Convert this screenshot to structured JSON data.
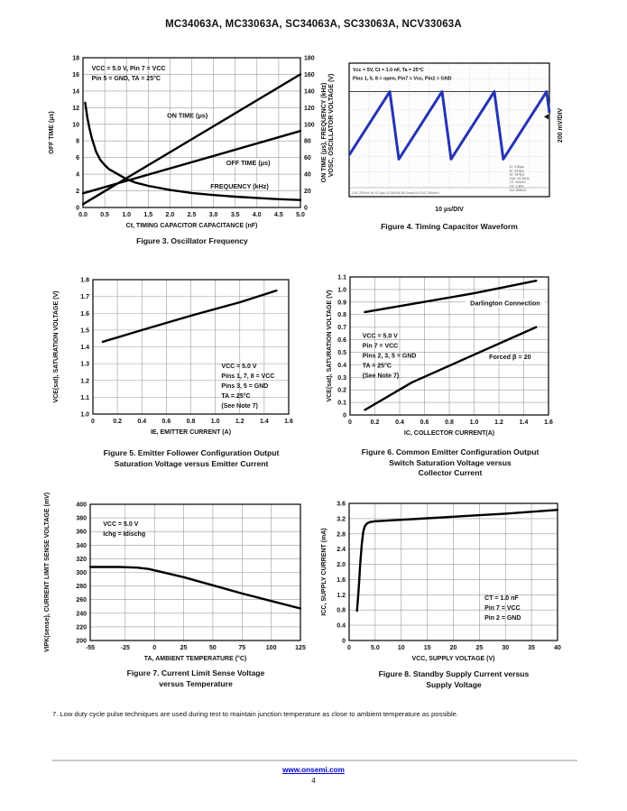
{
  "page": {
    "title": "MC34063A, MC33063A, SC34063A, SC33063A, NCV33063A",
    "note7": "7.  Low duty cycle pulse techniques are used during test to maintain junction temperature as close to ambient temperature as possible.",
    "footer_link": "www.onsemi.com",
    "page_number": "4"
  },
  "chart_data": [
    {
      "type": "line",
      "caption": "Figure 3. Oscillator Frequency",
      "xlabel": "Ct, TIMING CAPACITOR CAPACITANCE (nF)",
      "ylabel": "OFF TIME (μs)",
      "y2label": "ON TIME (μs), FREQUENCY (kHz)",
      "x": {
        "min": 0,
        "max": 5,
        "ticks": [
          0,
          0.5,
          1,
          1.5,
          2,
          2.5,
          3,
          3.5,
          4,
          4.5,
          5
        ],
        "labels": [
          "0.0",
          "0.5",
          "1.0",
          "1.5",
          "2.0",
          "2.5",
          "3.0",
          "3.5",
          "4.0",
          "4.5",
          "5.0"
        ]
      },
      "y": {
        "min": 0,
        "max": 18,
        "ticks": [
          0,
          2,
          4,
          6,
          8,
          10,
          12,
          14,
          16,
          18
        ],
        "labels": [
          "0",
          "2",
          "4",
          "6",
          "8",
          "10",
          "12",
          "14",
          "16",
          "18"
        ]
      },
      "y2": {
        "min": 0,
        "max": 180,
        "ticks": [
          0,
          20,
          40,
          60,
          80,
          100,
          120,
          140,
          160,
          180
        ],
        "labels": [
          "0",
          "20",
          "40",
          "60",
          "80",
          "100",
          "120",
          "140",
          "160",
          "180"
        ]
      },
      "series": [
        {
          "name": "ON TIME (μs)",
          "axis": "y2",
          "points": [
            [
              0,
              4
            ],
            [
              5,
              160
            ]
          ]
        },
        {
          "name": "OFF TIME (μs)",
          "axis": "y",
          "points": [
            [
              0,
              1.7
            ],
            [
              5,
              9.2
            ]
          ]
        },
        {
          "name": "FREQUENCY (kHz)",
          "axis": "y2",
          "points": [
            [
              0.05,
              126
            ],
            [
              0.1,
              108
            ],
            [
              0.15,
              95
            ],
            [
              0.2,
              84
            ],
            [
              0.3,
              67
            ],
            [
              0.4,
              57
            ],
            [
              0.5,
              51
            ],
            [
              0.6,
              46
            ],
            [
              0.8,
              40
            ],
            [
              1.0,
              34
            ],
            [
              1.2,
              30
            ],
            [
              1.5,
              26
            ],
            [
              2.0,
              21
            ],
            [
              2.5,
              17.5
            ],
            [
              3.0,
              15
            ],
            [
              3.5,
              13
            ],
            [
              4.0,
              11.5
            ],
            [
              4.5,
              10
            ],
            [
              5.0,
              9
            ]
          ]
        }
      ],
      "labels": [
        {
          "x": 2.4,
          "y": 10.8,
          "text": "ON TIME (μs)"
        },
        {
          "x": 3.8,
          "y": 5.1,
          "text": "OFF TIME (μs)"
        },
        {
          "x": 3.6,
          "y": 2.3,
          "text": "FREQUENCY (kHz)"
        }
      ],
      "notes": [
        {
          "x": 0.2,
          "y": 16.5,
          "lines": [
            "VCC = 5.0 V, Pin 7 = VCC",
            "Pin 5 = GND, TA = 25°C"
          ]
        }
      ]
    },
    {
      "type": "scope",
      "caption": "Figure 4. Timing Capacitor Waveform",
      "ylabel": "VOSC, OSCILLATOR VOLTAGE (V)",
      "right_label": "200 mV/DIV",
      "xlabel": "10 μs/DIV",
      "notes": [
        "Vcc = 5V, Ct = 1.0 nF, Ta = 25°C",
        "Pins 1, 5, 8 = open, Pin7 = Vcc, Pin2 = GND"
      ],
      "waveform": {
        "color": "#2633b2",
        "divx": 10,
        "divy": 8,
        "first_peak_div": 2.03,
        "period_div": 2.61,
        "fall_div": 0.45,
        "top_frac": 0.229,
        "bottom_frac": 0.771
      },
      "status": "Ch1  200mV     M 10.0μs  12.5MS/s  80.0ns/pt      A  Ch1 ∫ 800mV",
      "readout": [
        "t1:  5.60μs",
        "t2:  43.6μs",
        "Δt:  38.0μs",
        "1/Δt: 26.3kHz",
        "V1:  402mV",
        "V2:  1.30V",
        "ΔV:  898mV"
      ]
    },
    {
      "type": "line",
      "caption": "Figure 5. Emitter Follower Configuration Output\nSaturation Voltage versus Emitter Current",
      "xlabel": "IE, EMITTER CURRENT (A)",
      "ylabel": "VCE(sat), SATURATION VOLTAGE (V)",
      "x": {
        "min": 0,
        "max": 1.6,
        "ticks": [
          0,
          0.2,
          0.4,
          0.6,
          0.8,
          1.0,
          1.2,
          1.4,
          1.6
        ],
        "labels": [
          "0",
          "0.2",
          "0.4",
          "0.6",
          "0.8",
          "1.0",
          "1.2",
          "1.4",
          "1.6"
        ]
      },
      "y": {
        "min": 1.0,
        "max": 1.8,
        "ticks": [
          1.0,
          1.1,
          1.2,
          1.3,
          1.4,
          1.5,
          1.6,
          1.7,
          1.8
        ],
        "labels": [
          "1.0",
          "1.1",
          "1.2",
          "1.3",
          "1.4",
          "1.5",
          "1.6",
          "1.7",
          "1.8"
        ]
      },
      "series": [
        {
          "name": "VCE(sat)",
          "axis": "y",
          "points": [
            [
              0.08,
              1.43
            ],
            [
              0.4,
              1.5
            ],
            [
              0.8,
              1.585
            ],
            [
              1.2,
              1.665
            ],
            [
              1.5,
              1.735
            ]
          ]
        }
      ],
      "labels": [],
      "notes": [
        {
          "x": 1.05,
          "y": 1.275,
          "lines": [
            "VCC = 5.0 V",
            "Pins 1, 7, 8 = VCC",
            "Pins 3, 5 = GND",
            "TA = 25°C",
            "(See Note 7)"
          ]
        }
      ]
    },
    {
      "type": "line",
      "caption": "Figure 6. Common Emitter Configuration Output\nSwitch Saturation Voltage versus\nCollector Current",
      "xlabel": "IC, COLLECTOR CURRENT(A)",
      "ylabel": "VCE(sat), SATURATION VOLTAGE (V)",
      "x": {
        "min": 0,
        "max": 1.6,
        "ticks": [
          0,
          0.2,
          0.4,
          0.6,
          0.8,
          1.0,
          1.2,
          1.4,
          1.6
        ],
        "labels": [
          "0",
          "0.2",
          "0.4",
          "0.6",
          "0.8",
          "1.0",
          "1.2",
          "1.4",
          "1.6"
        ]
      },
      "y": {
        "min": 0,
        "max": 1.1,
        "ticks": [
          0,
          0.1,
          0.2,
          0.3,
          0.4,
          0.5,
          0.6,
          0.7,
          0.8,
          0.9,
          1.0,
          1.1
        ],
        "labels": [
          "0",
          "0.1",
          "0.2",
          "0.3",
          "0.4",
          "0.5",
          "0.6",
          "0.7",
          "0.8",
          "0.9",
          "1.0",
          "1.1"
        ]
      },
      "series": [
        {
          "name": "Darlington Connection",
          "axis": "y",
          "points": [
            [
              0.12,
              0.82
            ],
            [
              0.5,
              0.885
            ],
            [
              1.0,
              0.97
            ],
            [
              1.5,
              1.07
            ]
          ]
        },
        {
          "name": "Forced β = 20",
          "axis": "y",
          "points": [
            [
              0.12,
              0.04
            ],
            [
              0.5,
              0.26
            ],
            [
              1.0,
              0.48
            ],
            [
              1.5,
              0.7
            ]
          ]
        }
      ],
      "labels": [
        {
          "x": 1.25,
          "y": 0.875,
          "text": "Darlington Connection"
        },
        {
          "x": 1.29,
          "y": 0.445,
          "text": "Forced β = 20"
        }
      ],
      "notes": [
        {
          "x": 0.1,
          "y": 0.615,
          "lines": [
            "VCC = 5.0 V",
            "Pin 7 = VCC",
            "Pins 2, 3, 5 = GND",
            "TA = 25°C",
            "(See Note 7)"
          ]
        }
      ]
    },
    {
      "type": "line",
      "caption": "Figure 7. Current Limit Sense Voltage\nversus Temperature",
      "xlabel": "TA, AMBIENT TEMPERATURE (°C)",
      "ylabel": "VIPK(sense), CURRENT LIMIT SENSE VOLTAGE (mV)",
      "x": {
        "min": -55,
        "max": 125,
        "ticks": [
          -55,
          -25,
          0,
          25,
          50,
          75,
          100,
          125
        ],
        "labels": [
          "-55",
          "-25",
          "0",
          "25",
          "50",
          "75",
          "100",
          "125"
        ]
      },
      "y": {
        "min": 200,
        "max": 400,
        "ticks": [
          200,
          220,
          240,
          260,
          280,
          300,
          320,
          340,
          360,
          380,
          400
        ],
        "labels": [
          "200",
          "220",
          "240",
          "260",
          "280",
          "300",
          "320",
          "340",
          "360",
          "380",
          "400"
        ]
      },
      "series": [
        {
          "name": "VIPK(sense)",
          "axis": "y",
          "points": [
            [
              -55,
              308
            ],
            [
              -30,
              308
            ],
            [
              -15,
              307
            ],
            [
              -5,
              305
            ],
            [
              0,
              303
            ],
            [
              25,
              293
            ],
            [
              50,
              281
            ],
            [
              75,
              269
            ],
            [
              100,
              258
            ],
            [
              125,
              247
            ]
          ]
        }
      ],
      "labels": [],
      "notes": [
        {
          "x": -44,
          "y": 368,
          "lines": [
            "VCC = 5.0 V",
            "Ichg = Idischg"
          ]
        }
      ]
    },
    {
      "type": "line",
      "caption": "Figure 8. Standby Supply Current versus\nSupply Voltage",
      "xlabel": "VCC, SUPPLY VOLTAGE (V)",
      "ylabel": "ICC, SUPPLY CURRENT (mA)",
      "x": {
        "min": 0,
        "max": 40,
        "ticks": [
          0,
          5,
          10,
          15,
          20,
          25,
          30,
          35,
          40
        ],
        "labels": [
          "0",
          "5.0",
          "10",
          "15",
          "20",
          "25",
          "30",
          "35",
          "40"
        ]
      },
      "y": {
        "min": 0,
        "max": 3.6,
        "ticks": [
          0,
          0.4,
          0.8,
          1.2,
          1.6,
          2.0,
          2.4,
          2.8,
          3.2,
          3.6
        ],
        "labels": [
          "0",
          "0.4",
          "0.8",
          "1.2",
          "1.6",
          "2.0",
          "2.4",
          "2.8",
          "3.2",
          "3.6"
        ]
      },
      "series": [
        {
          "name": "ICC",
          "axis": "y",
          "points": [
            [
              1.5,
              0.78
            ],
            [
              1.7,
              1.1
            ],
            [
              1.9,
              1.5
            ],
            [
              2.1,
              1.95
            ],
            [
              2.4,
              2.5
            ],
            [
              2.7,
              2.85
            ],
            [
              3.0,
              3.0
            ],
            [
              3.5,
              3.08
            ],
            [
              4.0,
              3.11
            ],
            [
              5,
              3.13
            ],
            [
              10,
              3.17
            ],
            [
              15,
              3.21
            ],
            [
              20,
              3.25
            ],
            [
              25,
              3.29
            ],
            [
              30,
              3.33
            ],
            [
              35,
              3.38
            ],
            [
              40,
              3.43
            ]
          ]
        }
      ],
      "labels": [],
      "notes": [
        {
          "x": 26,
          "y": 1.06,
          "lines": [
            "CT = 1.0 nF",
            "Pin 7 = VCC",
            "Pin 2 = GND"
          ]
        }
      ]
    }
  ]
}
